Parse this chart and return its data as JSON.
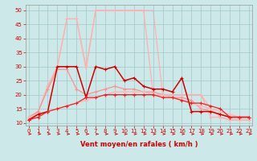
{
  "bg": "#cde8e8",
  "grid_color": "#aacccc",
  "xlabel": "Vent moyen/en rafales ( km/h )",
  "xlim": [
    -0.3,
    23.3
  ],
  "ylim": [
    9,
    52
  ],
  "yticks": [
    10,
    15,
    20,
    25,
    30,
    35,
    40,
    45,
    50
  ],
  "xticks": [
    0,
    1,
    2,
    3,
    4,
    5,
    6,
    7,
    8,
    9,
    10,
    11,
    12,
    13,
    14,
    15,
    16,
    17,
    18,
    19,
    20,
    21,
    22,
    23
  ],
  "curves": [
    {
      "x": [
        0,
        1,
        2,
        3,
        4,
        5,
        6,
        7,
        8,
        9,
        10,
        11,
        12,
        13,
        14,
        15,
        16,
        17,
        18,
        19,
        20,
        21,
        22,
        23
      ],
      "y": [
        11,
        14,
        23,
        30,
        47,
        47,
        29,
        50,
        50,
        50,
        50,
        50,
        50,
        50,
        20,
        20,
        20,
        20,
        20,
        15,
        12,
        11,
        11,
        11
      ],
      "color": "#ffb0b0",
      "lw": 0.9,
      "marker": "None",
      "ms": 0,
      "zorder": 1
    },
    {
      "x": [
        0,
        1,
        2,
        3,
        4,
        5,
        6,
        7,
        8,
        9,
        10,
        11,
        12,
        13,
        14,
        15,
        16,
        17,
        18,
        19,
        20,
        21,
        22,
        23
      ],
      "y": [
        11,
        14,
        23,
        30,
        47,
        47,
        30,
        50,
        50,
        50,
        50,
        50,
        50,
        20,
        20,
        20,
        20,
        20,
        20,
        12,
        12,
        11,
        11,
        11
      ],
      "color": "#ffb0b0",
      "lw": 0.9,
      "marker": "+",
      "ms": 3,
      "zorder": 2
    },
    {
      "x": [
        0,
        1,
        2,
        3,
        4,
        5,
        6,
        7,
        8,
        9,
        10,
        11,
        12,
        13,
        14,
        15,
        16,
        17,
        18,
        19,
        20,
        21,
        22,
        23
      ],
      "y": [
        12,
        14,
        22,
        29,
        29,
        22,
        20,
        21,
        22,
        23,
        22,
        22,
        21,
        21,
        20,
        19,
        19,
        18,
        15,
        14,
        13,
        12,
        12,
        12
      ],
      "color": "#ff9090",
      "lw": 0.9,
      "marker": "+",
      "ms": 3,
      "zorder": 3
    },
    {
      "x": [
        0,
        1,
        2,
        3,
        4,
        5,
        6,
        7,
        8,
        9,
        10,
        11,
        12,
        13,
        14,
        15,
        16,
        17,
        18,
        19,
        20,
        21,
        22,
        23
      ],
      "y": [
        12,
        13,
        14,
        15,
        16,
        17,
        18,
        19,
        20,
        21,
        21,
        21,
        21,
        20,
        20,
        19,
        18,
        17,
        16,
        15,
        14,
        13,
        12,
        12
      ],
      "color": "#ffb8b8",
      "lw": 1.0,
      "marker": "+",
      "ms": 3,
      "zorder": 4
    },
    {
      "x": [
        0,
        1,
        2,
        3,
        4,
        5,
        6,
        7,
        8,
        9,
        10,
        11,
        12,
        13,
        14,
        15,
        16,
        17,
        18,
        19,
        20,
        21,
        22,
        23
      ],
      "y": [
        11,
        13,
        14,
        30,
        30,
        30,
        19,
        30,
        29,
        30,
        25,
        26,
        23,
        22,
        22,
        21,
        26,
        14,
        14,
        14,
        13,
        12,
        12,
        12
      ],
      "color": "#cc0000",
      "lw": 1.1,
      "marker": "+",
      "ms": 3.5,
      "zorder": 5
    },
    {
      "x": [
        0,
        1,
        2,
        3,
        4,
        5,
        6,
        7,
        8,
        9,
        10,
        11,
        12,
        13,
        14,
        15,
        16,
        17,
        18,
        19,
        20,
        21,
        22,
        23
      ],
      "y": [
        11,
        12,
        14,
        15,
        16,
        17,
        19,
        19,
        20,
        20,
        20,
        20,
        20,
        20,
        19,
        19,
        18,
        17,
        17,
        16,
        15,
        12,
        12,
        12
      ],
      "color": "#ee2222",
      "lw": 0.9,
      "marker": "+",
      "ms": 3,
      "zorder": 6
    }
  ],
  "arrows_x": [
    0,
    1,
    2,
    3,
    4,
    5,
    6,
    7,
    8,
    9,
    10,
    11,
    12,
    13,
    14,
    15,
    16,
    17,
    18,
    19,
    20,
    21,
    22,
    23
  ],
  "arrow_color": "#cc0000"
}
